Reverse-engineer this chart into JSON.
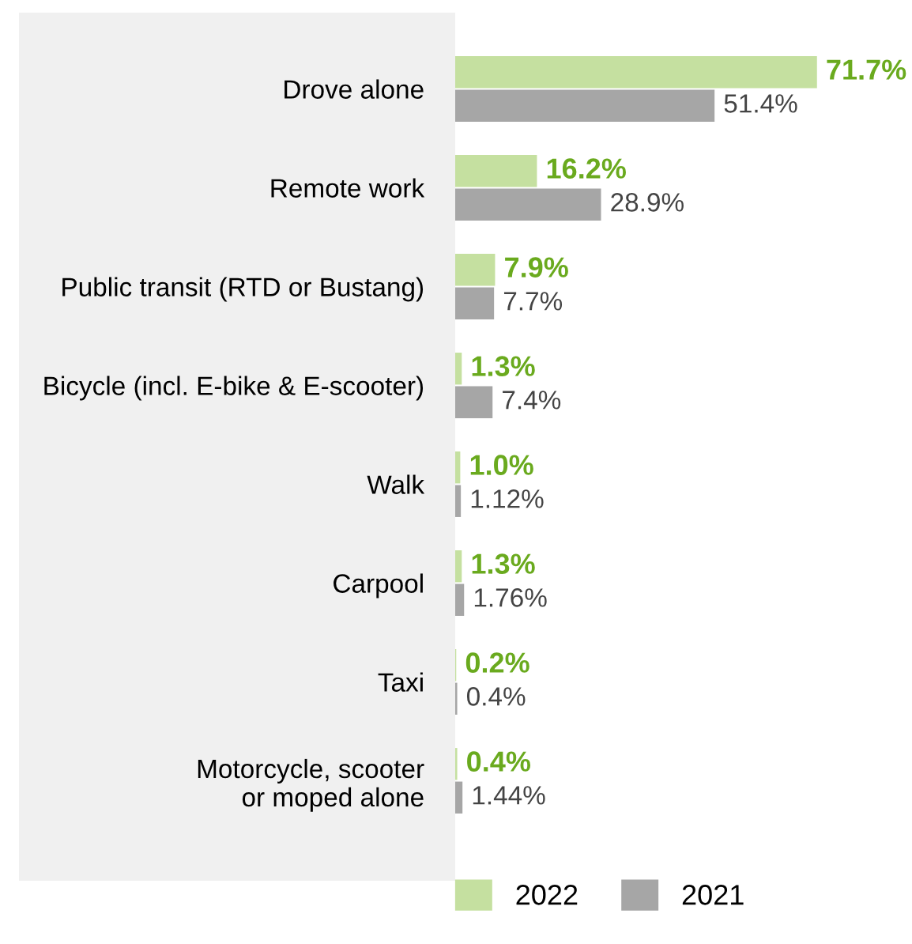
{
  "chart_data": {
    "type": "bar",
    "orientation": "horizontal",
    "categories": [
      "Drove alone",
      "Remote work",
      "Public transit (RTD or Bustang)",
      "Bicycle (incl. E-bike & E-scooter)",
      "Walk",
      "Carpool",
      "Taxi",
      "Motorcycle, scooter\nor moped alone"
    ],
    "series": [
      {
        "name": "2022",
        "color": "#c5e0a0",
        "values": [
          71.7,
          16.2,
          7.9,
          1.3,
          1.0,
          1.3,
          0.2,
          0.4
        ],
        "value_labels": [
          "71.7%",
          "16.2%",
          "7.9%",
          "1.3%",
          "1.0%",
          "1.3%",
          "0.2%",
          "0.4%"
        ]
      },
      {
        "name": "2021",
        "color": "#a6a6a6",
        "values": [
          51.4,
          28.9,
          7.7,
          7.4,
          1.12,
          1.76,
          0.4,
          1.44
        ],
        "value_labels": [
          "51.4%",
          "28.9%",
          "7.7%",
          "7.4%",
          "1.12%",
          "1.76%",
          "0.4%",
          "1.44%"
        ]
      }
    ],
    "legend": "bottom",
    "grid": false
  }
}
